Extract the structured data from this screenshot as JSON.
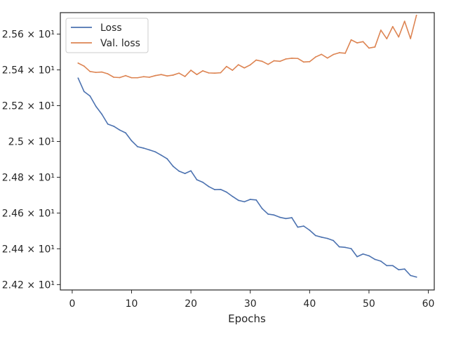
{
  "chart_data": {
    "type": "line",
    "title": "",
    "xlabel": "Epochs",
    "ylabel": "",
    "xlim": [
      -2,
      61
    ],
    "ylim": [
      24.17,
      25.72
    ],
    "y_scale": "linear",
    "grid": false,
    "legend_position": "top-left",
    "x_ticks": [
      0,
      10,
      20,
      30,
      40,
      50,
      60
    ],
    "x_tick_labels": [
      "0",
      "10",
      "20",
      "30",
      "40",
      "50",
      "60"
    ],
    "y_ticks": [
      24.2,
      24.4,
      24.6,
      24.8,
      25.0,
      25.2,
      25.4,
      25.6
    ],
    "y_tick_labels": [
      "2.42 × 10¹",
      "2.44 × 10¹",
      "2.46 × 10¹",
      "2.48 × 10¹",
      "2.5 × 10¹",
      "2.52 × 10¹",
      "2.54 × 10¹",
      "2.56 × 10¹"
    ],
    "x": [
      1,
      2,
      3,
      4,
      5,
      6,
      7,
      8,
      9,
      10,
      11,
      12,
      13,
      14,
      15,
      16,
      17,
      18,
      19,
      20,
      21,
      22,
      23,
      24,
      25,
      26,
      27,
      28,
      29,
      30,
      31,
      32,
      33,
      34,
      35,
      36,
      37,
      38,
      39,
      40,
      41,
      42,
      43,
      44,
      45,
      46,
      47,
      48,
      49,
      50,
      51,
      52,
      53,
      54,
      55,
      56,
      57,
      58
    ],
    "series": [
      {
        "name": "Loss",
        "color": "#4c72b0",
        "values": [
          25.354,
          25.279,
          25.254,
          25.196,
          25.152,
          25.097,
          25.085,
          25.064,
          25.048,
          25.004,
          24.971,
          24.963,
          24.953,
          24.942,
          24.923,
          24.903,
          24.861,
          24.834,
          24.821,
          24.836,
          24.786,
          24.772,
          24.748,
          24.731,
          24.732,
          24.717,
          24.693,
          24.671,
          24.663,
          24.676,
          24.673,
          24.625,
          24.594,
          24.589,
          24.576,
          24.569,
          24.574,
          24.521,
          24.527,
          24.504,
          24.474,
          24.465,
          24.458,
          24.446,
          24.411,
          24.408,
          24.401,
          24.356,
          24.371,
          24.361,
          24.341,
          24.331,
          24.306,
          24.306,
          24.283,
          24.287,
          24.251,
          24.242
        ]
      },
      {
        "name": "Val. loss",
        "color": "#dd8452",
        "values": [
          25.438,
          25.421,
          25.391,
          25.386,
          25.388,
          25.378,
          25.359,
          25.357,
          25.368,
          25.356,
          25.356,
          25.362,
          25.359,
          25.368,
          25.374,
          25.366,
          25.371,
          25.382,
          25.363,
          25.398,
          25.374,
          25.395,
          25.383,
          25.382,
          25.384,
          25.419,
          25.398,
          25.429,
          25.411,
          25.428,
          25.455,
          25.448,
          25.431,
          25.451,
          25.448,
          25.461,
          25.465,
          25.464,
          25.444,
          25.446,
          25.472,
          25.487,
          25.466,
          25.486,
          25.496,
          25.493,
          25.568,
          25.551,
          25.558,
          25.522,
          25.528,
          25.622,
          25.574,
          25.642,
          25.584,
          25.672,
          25.575,
          25.705
        ]
      }
    ]
  }
}
